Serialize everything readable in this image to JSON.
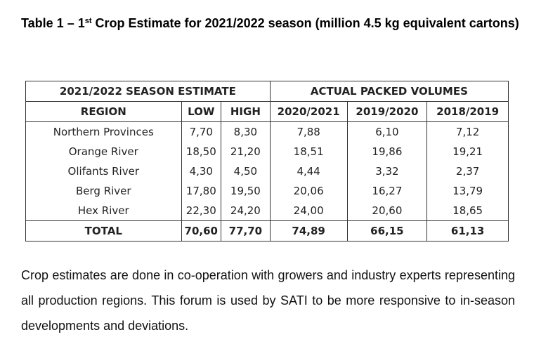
{
  "title": {
    "prefix": "Table 1 – 1",
    "superscript": "st",
    "suffix": " Crop Estimate for 2021/2022 season (million 4.5 kg equivalent cartons)"
  },
  "table": {
    "group_headers": [
      "2021/2022 SEASON ESTIMATE",
      "ACTUAL PACKED VOLUMES"
    ],
    "columns": [
      "REGION",
      "LOW",
      "HIGH",
      "2020/2021",
      "2019/2020",
      "2018/2019"
    ],
    "rows": [
      [
        "Northern Provinces",
        "7,70",
        "8,30",
        "7,88",
        "6,10",
        "7,12"
      ],
      [
        "Orange River",
        "18,50",
        "21,20",
        "18,51",
        "19,86",
        "19,21"
      ],
      [
        "Olifants River",
        "4,30",
        "4,50",
        "4,44",
        "3,32",
        "2,37"
      ],
      [
        "Berg River",
        "17,80",
        "19,50",
        "20,06",
        "16,27",
        "13,79"
      ],
      [
        "Hex River",
        "22,30",
        "24,20",
        "24,00",
        "20,60",
        "18,65"
      ]
    ],
    "total": [
      "TOTAL",
      "70,60",
      "77,70",
      "74,89",
      "66,15",
      "61,13"
    ]
  },
  "paragraph": "Crop estimates are done in co-operation with growers and industry experts representing all production regions. This forum is used by SATI to be more responsive to in-season developments and deviations."
}
